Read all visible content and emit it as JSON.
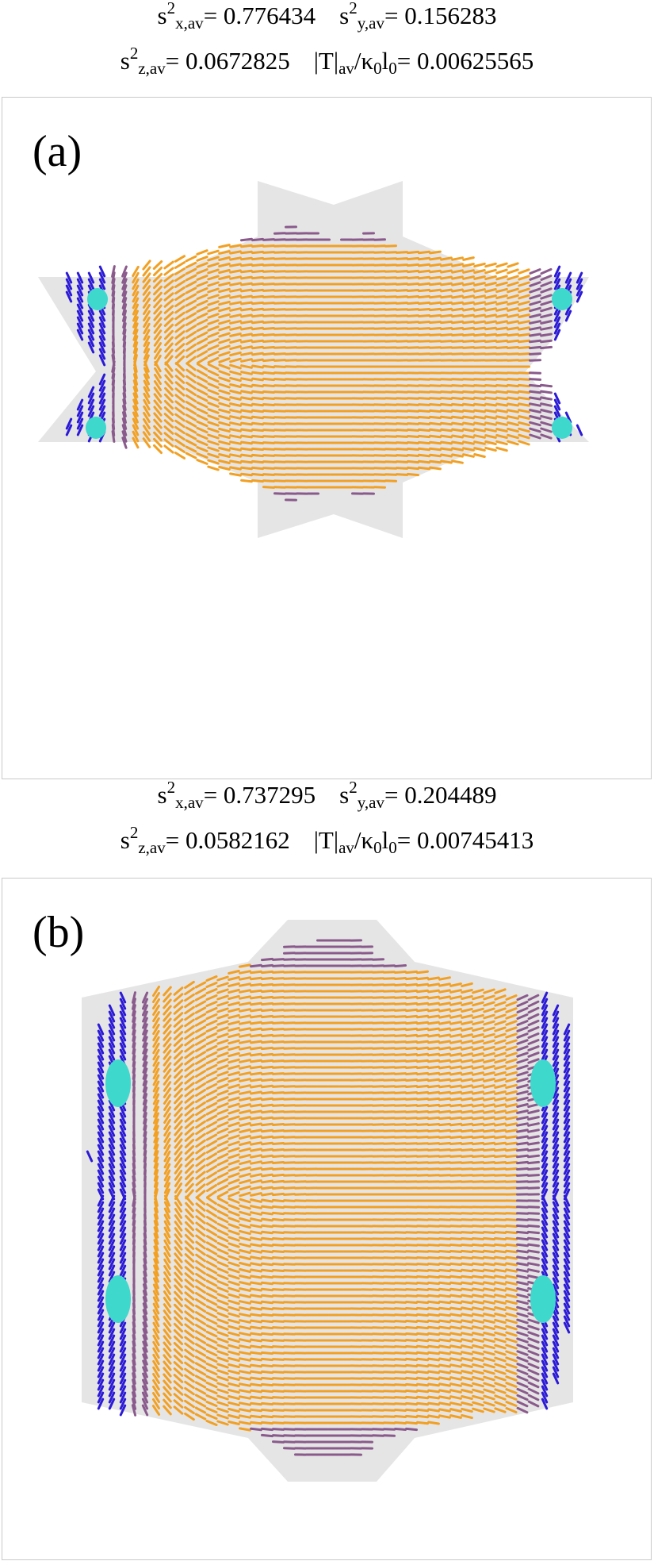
{
  "panels": [
    {
      "label": "(a)",
      "stats": {
        "sx2": "0.776434",
        "sy2": "0.156283",
        "sz2": "0.0672825",
        "t_ratio": "0.00625565"
      }
    },
    {
      "label": "(b)",
      "stats": {
        "sx2": "0.737295",
        "sy2": "0.204489",
        "sz2": "0.0582162",
        "t_ratio": "0.00745413"
      }
    }
  ],
  "colors": {
    "background_region": "#e5e5e5",
    "aligned_director": "#f2a023",
    "edge_director": "#2b1ad6",
    "mixed_director": "#8a5a8c",
    "defect": "#3ed8cc",
    "frame": "#c9c9c9"
  }
}
